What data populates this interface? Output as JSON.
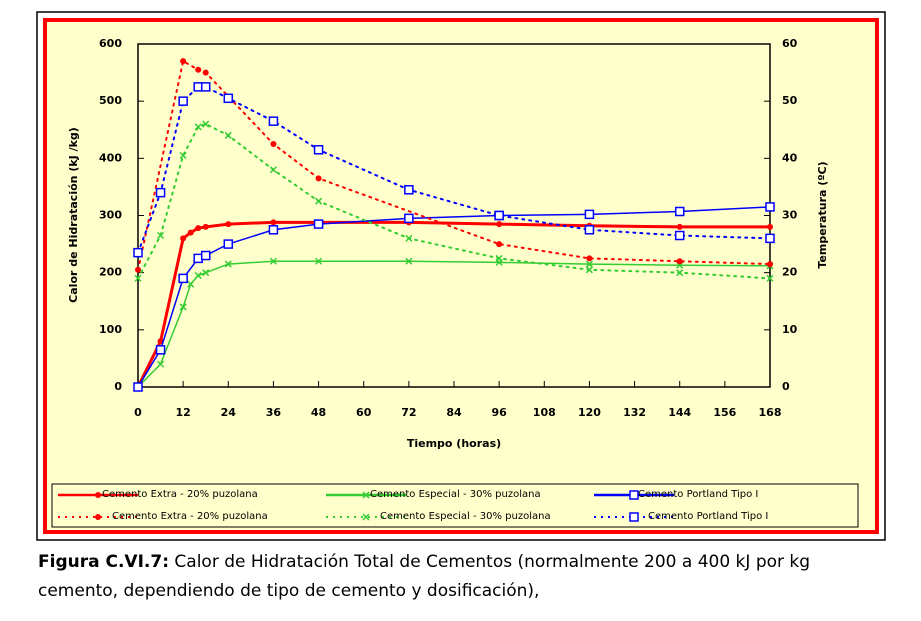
{
  "chart_data": {
    "type": "line",
    "xlabel": "Tiempo (horas)",
    "ylabel": "Calor de Hidratación (kJ /kg)",
    "y2label": "Temperatura (ºC)",
    "xlim": [
      0,
      168
    ],
    "xticks": [
      0,
      12,
      24,
      36,
      48,
      60,
      72,
      84,
      96,
      108,
      120,
      132,
      144,
      156,
      168
    ],
    "ylim": [
      0,
      600
    ],
    "yticks": [
      0,
      100,
      200,
      300,
      400,
      500,
      600
    ],
    "y2lim": [
      0,
      60
    ],
    "y2ticks": [
      0,
      10,
      20,
      30,
      40,
      50,
      60
    ],
    "series": [
      {
        "name": "Cemento Extra - 20% puzolana",
        "color": "#ff0000",
        "style": "solid",
        "marker": "circle",
        "axis": "y",
        "x": [
          0,
          6,
          12,
          14,
          16,
          18,
          24,
          36,
          48,
          72,
          96,
          120,
          144,
          168
        ],
        "values": [
          0,
          80,
          260,
          270,
          278,
          280,
          285,
          288,
          288,
          288,
          285,
          282,
          280,
          280
        ]
      },
      {
        "name": "Cemento Especial - 30% puzolana",
        "color": "#33cc33",
        "style": "solid",
        "marker": "x",
        "axis": "y",
        "x": [
          0,
          6,
          12,
          14,
          16,
          18,
          24,
          36,
          48,
          72,
          96,
          120,
          144,
          168
        ],
        "values": [
          0,
          40,
          140,
          180,
          195,
          200,
          215,
          220,
          220,
          220,
          218,
          215,
          213,
          212
        ]
      },
      {
        "name": "Cemento Portland Tipo I",
        "color": "#0000ff",
        "style": "solid",
        "marker": "square",
        "axis": "y",
        "x": [
          0,
          6,
          12,
          16,
          18,
          24,
          36,
          48,
          72,
          96,
          120,
          144,
          168
        ],
        "values": [
          0,
          65,
          190,
          225,
          230,
          250,
          275,
          285,
          295,
          300,
          302,
          307,
          315
        ]
      },
      {
        "name": "Cemento Extra - 20% puzolana",
        "color": "#ff0000",
        "style": "dotted",
        "marker": "circle",
        "axis": "y2",
        "x": [
          0,
          12,
          16,
          18,
          36,
          48,
          96,
          120,
          144,
          168
        ],
        "values": [
          20.5,
          57,
          55.5,
          55,
          42.5,
          36.5,
          25,
          22.5,
          22,
          21.5
        ]
      },
      {
        "name": "Cemento Especial - 30% puzolana",
        "color": "#33cc33",
        "style": "dotted",
        "marker": "x",
        "axis": "y2",
        "x": [
          0,
          6,
          12,
          16,
          18,
          24,
          36,
          48,
          72,
          96,
          120,
          144,
          168
        ],
        "values": [
          19,
          26.5,
          40.5,
          45.5,
          46,
          44,
          38,
          32.5,
          26,
          22.5,
          20.5,
          20,
          19
        ]
      },
      {
        "name": "Cemento Portland Tipo I",
        "color": "#0000ff",
        "style": "dotted",
        "marker": "square",
        "axis": "y2",
        "x": [
          0,
          6,
          12,
          16,
          18,
          24,
          36,
          48,
          72,
          96,
          120,
          144,
          168
        ],
        "values": [
          23.5,
          34,
          50,
          52.5,
          52.5,
          50.5,
          46.5,
          41.5,
          34.5,
          30,
          27.5,
          26.5,
          26
        ]
      }
    ]
  },
  "caption": {
    "label": "Figura C.VI.7:",
    "text": "Calor de Hidratación Total de Cementos (normalmente 200 a 400 kJ por kg cemento, dependiendo de tipo de cemento y dosificación),"
  }
}
